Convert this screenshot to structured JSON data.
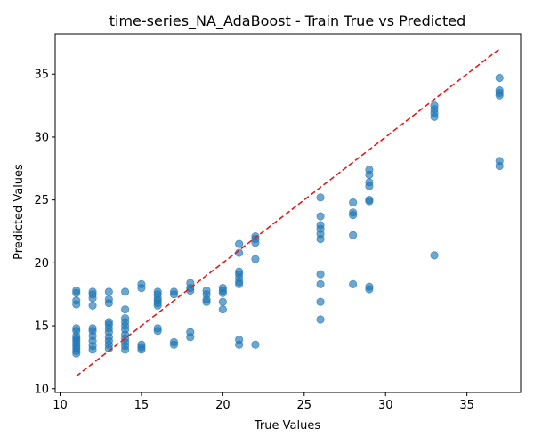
{
  "chart_data": {
    "type": "scatter",
    "title": "time-series_NA_AdaBoost - Train True vs Predicted",
    "xlabel": "True Values",
    "ylabel": "Predicted Values",
    "xlim": [
      9.7,
      38.3
    ],
    "ylim": [
      9.7,
      38.2
    ],
    "xticks": [
      10,
      15,
      20,
      25,
      30,
      35
    ],
    "yticks": [
      10,
      15,
      20,
      25,
      30,
      35
    ],
    "grid": false,
    "point_color": "#1f77b4",
    "point_opacity": 0.65,
    "reference_line": {
      "style": "dashed",
      "color": "#e41a1c",
      "x": [
        11,
        37
      ],
      "y": [
        11,
        37
      ]
    },
    "series": [
      {
        "points": [
          [
            11,
            12.8
          ],
          [
            11,
            13.0
          ],
          [
            11,
            13.2
          ],
          [
            11,
            13.4
          ],
          [
            11,
            13.6
          ],
          [
            11,
            13.8
          ],
          [
            11,
            14.0
          ],
          [
            11,
            14.2
          ],
          [
            11,
            14.6
          ],
          [
            11,
            14.8
          ],
          [
            11,
            16.7
          ],
          [
            11,
            17.0
          ],
          [
            11,
            17.6
          ],
          [
            11,
            17.8
          ],
          [
            12,
            13.1
          ],
          [
            12,
            13.4
          ],
          [
            12,
            13.8
          ],
          [
            12,
            14.2
          ],
          [
            12,
            14.6
          ],
          [
            12,
            14.8
          ],
          [
            12,
            16.6
          ],
          [
            12,
            17.2
          ],
          [
            12,
            17.5
          ],
          [
            12,
            17.7
          ],
          [
            13,
            13.2
          ],
          [
            13,
            13.5
          ],
          [
            13,
            13.8
          ],
          [
            13,
            14.1
          ],
          [
            13,
            14.5
          ],
          [
            13,
            14.8
          ],
          [
            13,
            15.1
          ],
          [
            13,
            15.3
          ],
          [
            13,
            16.8
          ],
          [
            13,
            17.1
          ],
          [
            13,
            17.7
          ],
          [
            14,
            13.1
          ],
          [
            14,
            13.4
          ],
          [
            14,
            13.7
          ],
          [
            14,
            14.0
          ],
          [
            14,
            14.3
          ],
          [
            14,
            14.7
          ],
          [
            14,
            15.0
          ],
          [
            14,
            15.3
          ],
          [
            14,
            15.6
          ],
          [
            14,
            16.3
          ],
          [
            14,
            17.7
          ],
          [
            15,
            13.1
          ],
          [
            15,
            13.3
          ],
          [
            15,
            13.5
          ],
          [
            15,
            18.0
          ],
          [
            15,
            18.3
          ],
          [
            16,
            14.6
          ],
          [
            16,
            14.8
          ],
          [
            16,
            16.6
          ],
          [
            16,
            16.8
          ],
          [
            16,
            17.0
          ],
          [
            16,
            17.2
          ],
          [
            16,
            17.5
          ],
          [
            16,
            17.7
          ],
          [
            17,
            13.5
          ],
          [
            17,
            13.7
          ],
          [
            17,
            17.5
          ],
          [
            17,
            17.7
          ],
          [
            18,
            14.1
          ],
          [
            18,
            14.5
          ],
          [
            18,
            17.8
          ],
          [
            18,
            18.0
          ],
          [
            18,
            18.4
          ],
          [
            19,
            16.9
          ],
          [
            19,
            17.1
          ],
          [
            19,
            17.5
          ],
          [
            19,
            17.8
          ],
          [
            20,
            16.3
          ],
          [
            20,
            16.9
          ],
          [
            20,
            17.6
          ],
          [
            20,
            17.8
          ],
          [
            20,
            18.0
          ],
          [
            21,
            13.5
          ],
          [
            21,
            13.9
          ],
          [
            21,
            18.3
          ],
          [
            21,
            18.5
          ],
          [
            21,
            18.8
          ],
          [
            21,
            19.1
          ],
          [
            21,
            19.3
          ],
          [
            21,
            20.8
          ],
          [
            21,
            21.5
          ],
          [
            22,
            13.5
          ],
          [
            22,
            20.3
          ],
          [
            22,
            21.6
          ],
          [
            22,
            21.9
          ],
          [
            22,
            22.1
          ],
          [
            26,
            15.5
          ],
          [
            26,
            16.9
          ],
          [
            26,
            18.3
          ],
          [
            26,
            19.1
          ],
          [
            26,
            21.9
          ],
          [
            26,
            22.3
          ],
          [
            26,
            22.7
          ],
          [
            26,
            23.0
          ],
          [
            26,
            23.7
          ],
          [
            26,
            25.2
          ],
          [
            28,
            18.3
          ],
          [
            28,
            22.2
          ],
          [
            28,
            23.8
          ],
          [
            28,
            24.0
          ],
          [
            28,
            24.8
          ],
          [
            29,
            17.9
          ],
          [
            29,
            18.1
          ],
          [
            29,
            24.9
          ],
          [
            29,
            25.0
          ],
          [
            29,
            26.1
          ],
          [
            29,
            26.4
          ],
          [
            29,
            27.0
          ],
          [
            29,
            27.4
          ],
          [
            33,
            20.6
          ],
          [
            33,
            31.6
          ],
          [
            33,
            31.9
          ],
          [
            33,
            32.2
          ],
          [
            33,
            32.5
          ],
          [
            37,
            27.7
          ],
          [
            37,
            28.1
          ],
          [
            37,
            33.3
          ],
          [
            37,
            33.5
          ],
          [
            37,
            33.7
          ],
          [
            37,
            34.7
          ]
        ]
      }
    ]
  }
}
